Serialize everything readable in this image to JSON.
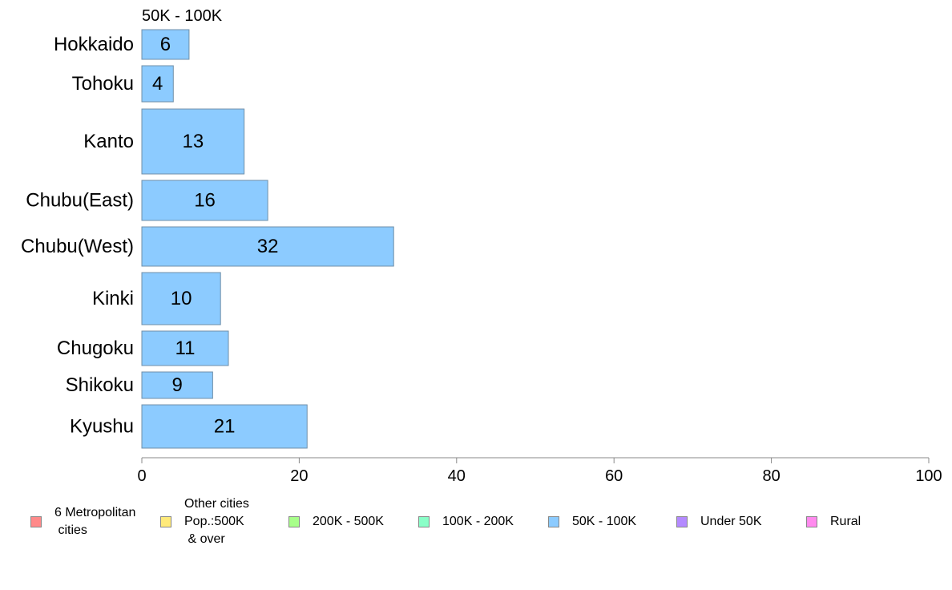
{
  "chart_data": {
    "type": "bar",
    "orientation": "horizontal",
    "title": "50K - 100K",
    "categories": [
      "Hokkaido",
      "Tohoku",
      "Kanto",
      "Chubu(East)",
      "Chubu(West)",
      "Kinki",
      "Chugoku",
      "Shikoku",
      "Kyushu"
    ],
    "values": [
      6,
      4,
      13,
      16,
      32,
      10,
      11,
      9,
      21
    ],
    "bar_labels": [
      "6",
      "4",
      "13",
      "16",
      "32",
      "10",
      "11",
      "9",
      "21"
    ],
    "xlim": [
      0,
      100
    ],
    "xticks": [
      0,
      20,
      40,
      60,
      80,
      100
    ],
    "xtick_labels": [
      "0",
      "20",
      "40",
      "60",
      "80",
      "100"
    ],
    "bar_color": "#8ccbff",
    "grid": false,
    "legend_placement": "bottom",
    "legend": [
      {
        "label": "6 Metropolitan\n cities",
        "color": "#ff8a8a"
      },
      {
        "label": "Other cities\nPop.:500K\n & over",
        "color": "#ffea7a"
      },
      {
        "label": "200K - 500K",
        "color": "#a8ff8a"
      },
      {
        "label": "100K - 200K",
        "color": "#8affc8"
      },
      {
        "label": "50K - 100K",
        "color": "#8ccbff"
      },
      {
        "label": "Under 50K",
        "color": "#b48aff"
      },
      {
        "label": "Rural",
        "color": "#ff8aee"
      }
    ]
  }
}
